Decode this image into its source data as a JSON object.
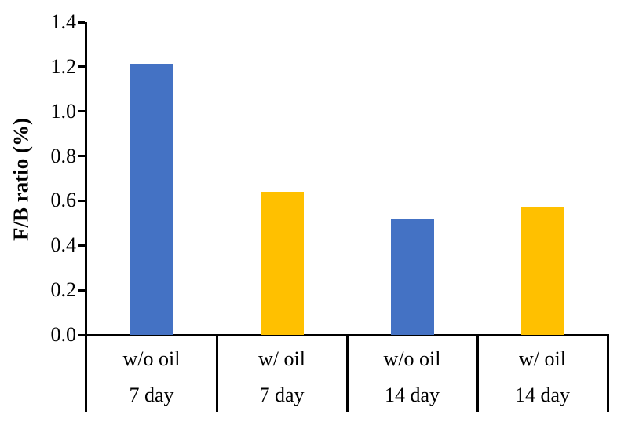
{
  "chart_data": {
    "type": "bar",
    "title": "",
    "xlabel": "",
    "ylabel": "F/B ratio (%)",
    "ylim": [
      0,
      1.4
    ],
    "ytick_labels": [
      "0.0",
      "0.2",
      "0.4",
      "0.6",
      "0.8",
      "1.0",
      "1.2",
      "1.4"
    ],
    "grid": false,
    "legend": false,
    "categories": [
      {
        "condition": "w/o oil",
        "day": "7 day"
      },
      {
        "condition": "w/ oil",
        "day": "7 day"
      },
      {
        "condition": "w/o oil",
        "day": "14 day"
      },
      {
        "condition": "w/ oil",
        "day": "14 day"
      }
    ],
    "values": [
      1.21,
      0.64,
      0.52,
      0.57
    ],
    "bar_colors": [
      "#4472C4",
      "#FFC000",
      "#4472C4",
      "#FFC000"
    ]
  },
  "colors": {
    "axis": "#000000",
    "text": "#000000",
    "background": "#FFFFFF",
    "series_blue": "#4472C4",
    "series_yellow": "#FFC000"
  }
}
